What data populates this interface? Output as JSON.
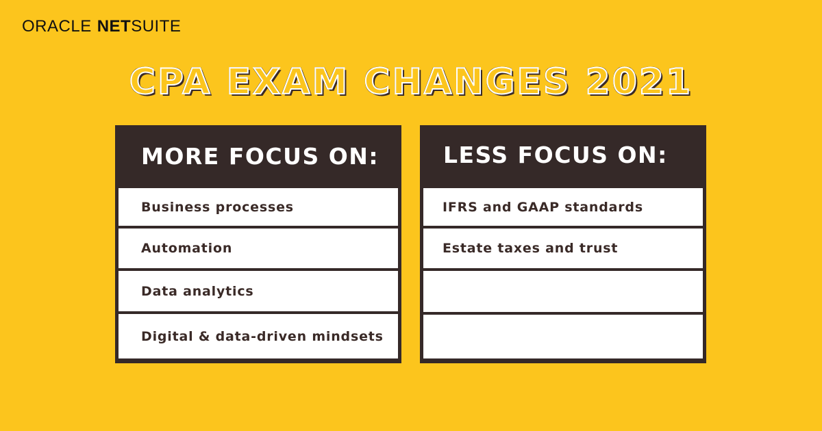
{
  "brand": {
    "oracle": "ORACLE",
    "net": "NET",
    "suite": "SUITE"
  },
  "headline": "CPA EXAM CHANGES 2021",
  "more_focus": {
    "header": "MORE FOCUS ON:",
    "items": [
      "Business processes",
      "Automation",
      "Data analytics",
      "Digital & data-driven mindsets"
    ]
  },
  "less_focus": {
    "header": "LESS FOCUS ON:",
    "items": [
      "IFRS and GAAP standards",
      "Estate taxes and trust",
      "",
      ""
    ]
  },
  "colors": {
    "background": "#FCC51D",
    "panel": "#352928",
    "text_dark": "#3a2a27",
    "row": "#FFFFFF"
  }
}
